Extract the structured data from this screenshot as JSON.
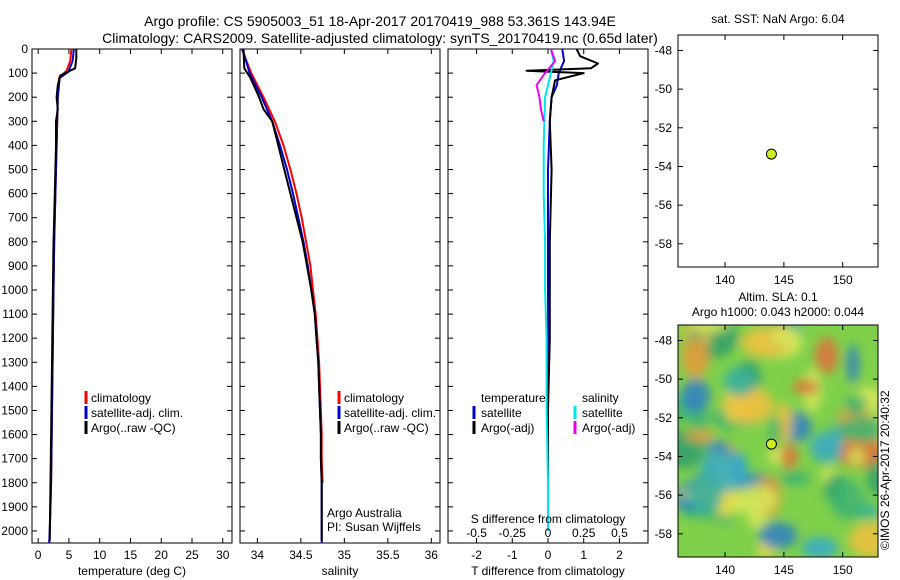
{
  "title": {
    "line1": "Argo profile: CS 5905003_51 18-Apr-2017 20170419_988 53.361S 143.94E",
    "line2": "Climatology: CARS2009. Satellite-adjusted climatology: synTS_20170419.nc (0.65d later)"
  },
  "colors": {
    "climatology": "#ff0000",
    "satellite": "#0000cc",
    "argo": "#000000",
    "salinity_satellite": "#00e5ee",
    "salinity_argo": "#ee00ee",
    "marker": "#ccee22"
  },
  "legend": {
    "climatology": "climatology",
    "satellite_clim": "satellite-adj. clim.",
    "argo_raw": "Argo(..raw -QC)",
    "temperature_header": "temperature",
    "salinity_header": "salinity",
    "satellite": "satellite",
    "argo_adj": "Argo(-adj)"
  },
  "credits": {
    "line1": "Argo Australia",
    "line2": "PI: Susan Wijffels",
    "stamp": "©IMOS 26-Apr-2017 20:40:32"
  },
  "chart_data": [
    {
      "type": "line",
      "title": "",
      "xlabel": "temperature (deg C)",
      "ylabel": "",
      "xlim": [
        -1,
        31.5
      ],
      "ylim": [
        2050,
        0
      ],
      "xticks": [
        0,
        5,
        10,
        15,
        20,
        25,
        30
      ],
      "yticks": [
        0,
        100,
        200,
        300,
        400,
        500,
        600,
        700,
        800,
        900,
        1000,
        1100,
        1200,
        1300,
        1400,
        1500,
        1600,
        1700,
        1800,
        1900,
        2000
      ],
      "series": [
        {
          "name": "climatology",
          "color": "#ff0000",
          "depth": [
            0,
            50,
            90,
            120,
            200,
            400,
            600,
            800,
            1000,
            1200,
            1400,
            1600,
            1800,
            2000,
            2050
          ],
          "values": [
            5.4,
            5.2,
            4.6,
            3.4,
            3.2,
            3.0,
            2.8,
            2.6,
            2.5,
            2.4,
            2.3,
            2.2,
            2.1,
            1.9,
            1.8
          ]
        },
        {
          "name": "satellite-adj. clim.",
          "color": "#0000cc",
          "depth": [
            0,
            50,
            95,
            120,
            200,
            400,
            600,
            800,
            1000,
            1200,
            1400,
            1600,
            1800,
            2000,
            2050
          ],
          "values": [
            5.8,
            5.6,
            4.9,
            3.5,
            3.2,
            3.0,
            2.8,
            2.6,
            2.5,
            2.4,
            2.3,
            2.2,
            2.1,
            1.9,
            1.8
          ]
        },
        {
          "name": "Argo(..raw -QC)",
          "color": "#000000",
          "depth": [
            0,
            40,
            80,
            95,
            110,
            150,
            200,
            250,
            300,
            400,
            500,
            600,
            700,
            800,
            1000,
            1200,
            1400,
            1600,
            1800,
            2000,
            2040
          ],
          "values": [
            6.2,
            6.2,
            6.0,
            4.8,
            3.6,
            3.2,
            3.0,
            3.2,
            2.9,
            2.9,
            2.8,
            2.7,
            2.6,
            2.5,
            2.4,
            2.3,
            2.2,
            2.1,
            2.0,
            1.9,
            1.9
          ]
        }
      ]
    },
    {
      "type": "line",
      "title": "",
      "xlabel": "salinity",
      "ylabel": "",
      "xlim": [
        33.8,
        36.1
      ],
      "ylim": [
        2050,
        0
      ],
      "xticks": [
        34,
        34.5,
        35,
        35.5,
        36
      ],
      "xtick_labels": [
        "34",
        "34.5",
        "35",
        "35.5",
        "36"
      ],
      "series": [
        {
          "name": "climatology",
          "color": "#ff0000",
          "depth": [
            0,
            100,
            200,
            300,
            400,
            500,
            600,
            700,
            800,
            900,
            1000,
            1100,
            1200,
            1300,
            1400,
            1500,
            1600,
            1700,
            1800
          ],
          "values": [
            33.82,
            33.93,
            34.07,
            34.2,
            34.3,
            34.38,
            34.45,
            34.51,
            34.56,
            34.61,
            34.64,
            34.67,
            34.69,
            34.71,
            34.72,
            34.73,
            34.74,
            34.74,
            34.75
          ]
        },
        {
          "name": "satellite-adj. clim.",
          "color": "#0000cc",
          "depth": [
            0,
            100,
            200,
            300,
            400,
            500,
            600,
            700,
            800,
            900,
            1000,
            1100,
            1200,
            1300,
            1400,
            1500,
            1600,
            1700,
            1800,
            1900,
            2000,
            2050
          ],
          "values": [
            33.83,
            33.91,
            34.05,
            34.17,
            34.26,
            34.34,
            34.41,
            34.47,
            34.53,
            34.58,
            34.62,
            34.66,
            34.68,
            34.7,
            34.71,
            34.72,
            34.73,
            34.73,
            34.74,
            34.74,
            34.74,
            34.74
          ]
        },
        {
          "name": "Argo(..raw -QC)",
          "color": "#000000",
          "depth": [
            0,
            80,
            120,
            160,
            200,
            250,
            300,
            400,
            500,
            600,
            700,
            800,
            900,
            1000,
            1100,
            1200,
            1300,
            1400,
            1500,
            1600,
            1700,
            1800,
            1900,
            2000,
            2040
          ],
          "values": [
            33.84,
            33.85,
            33.92,
            33.97,
            34.02,
            34.07,
            34.17,
            34.24,
            34.31,
            34.38,
            34.45,
            34.52,
            34.57,
            34.62,
            34.66,
            34.68,
            34.7,
            34.71,
            34.72,
            34.73,
            34.73,
            34.74,
            34.74,
            34.74,
            34.74
          ]
        }
      ]
    },
    {
      "type": "line",
      "title": "",
      "xlabel": "T difference from climatology",
      "xlabel_top": "S difference from climatology",
      "ylabel": "",
      "xlim": [
        -2.8,
        2.8
      ],
      "ylim": [
        2050,
        0
      ],
      "xticks": [
        -2,
        -1,
        0,
        1,
        2
      ],
      "xtick_labels": [
        "-2",
        "-1",
        "0",
        "1",
        "2"
      ],
      "s_axis_ticks": [
        -0.5,
        -0.25,
        0,
        0.25,
        0.5
      ],
      "s_axis_tick_labels": [
        "-0.5",
        "-0.25",
        "0",
        "0.25",
        "0.5"
      ],
      "series": [
        {
          "name": "temperature satellite",
          "color": "#0000cc",
          "depth": [
            0,
            50,
            100,
            150,
            200,
            300,
            500,
            800,
            1000,
            1200,
            1500,
            1800,
            2000
          ],
          "values": [
            0.4,
            0.45,
            0.3,
            0.25,
            0.1,
            0.05,
            0.0,
            0.0,
            0.0,
            0.0,
            0.0,
            0.0,
            0.0
          ]
        },
        {
          "name": "temperature Argo(-adj)",
          "color": "#000000",
          "depth": [
            0,
            30,
            60,
            80,
            90,
            100,
            130,
            200,
            300,
            500,
            800,
            1000,
            1200,
            1500,
            1800,
            2000
          ],
          "values": [
            0.8,
            0.9,
            1.4,
            1.2,
            -0.6,
            1.0,
            0.2,
            0.1,
            0.05,
            0.1,
            0.05,
            0.05,
            0.05,
            0.0,
            0.0,
            0.0
          ]
        },
        {
          "name": "salinity satellite",
          "color": "#00e5ee",
          "depth": [
            0,
            50,
            100,
            200,
            400,
            600,
            800,
            1000,
            1200,
            1500,
            1800,
            2000
          ],
          "values": [
            0.02,
            0.04,
            0.02,
            -0.02,
            -0.03,
            -0.03,
            -0.02,
            -0.02,
            -0.01,
            -0.01,
            0.0,
            0.0
          ]
        },
        {
          "name": "salinity Argo(-adj)",
          "color": "#ee00ee",
          "depth": [
            0,
            50,
            100,
            150,
            200,
            250,
            300
          ],
          "values": [
            0.02,
            0.05,
            -0.02,
            -0.08,
            -0.06,
            -0.05,
            -0.03
          ]
        }
      ]
    },
    {
      "type": "scatter",
      "title": "sat. SST: NaN Argo: 6.04",
      "xlabel": "",
      "ylabel": "",
      "xlim": [
        136,
        153
      ],
      "ylim": [
        -59.2,
        -47.2
      ],
      "xticks": [
        140,
        145,
        150
      ],
      "yticks": [
        -48,
        -50,
        -52,
        -54,
        -56,
        -58
      ],
      "points": [
        {
          "x": 143.94,
          "y": -53.361
        }
      ]
    },
    {
      "type": "heatmap",
      "title": "Altim. SLA: 0.1",
      "subtitle": "Argo h1000: 0.043 h2000: 0.044",
      "xlabel": "",
      "ylabel": "",
      "xlim": [
        136,
        153
      ],
      "ylim": [
        -59.2,
        -47.2
      ],
      "xticks": [
        140,
        145,
        150
      ],
      "yticks": [
        -48,
        -50,
        -52,
        -54,
        -56,
        -58
      ],
      "points": [
        {
          "x": 143.94,
          "y": -53.361
        }
      ],
      "field_notes": "gridded sea level anomaly field, not numerically readable"
    }
  ]
}
